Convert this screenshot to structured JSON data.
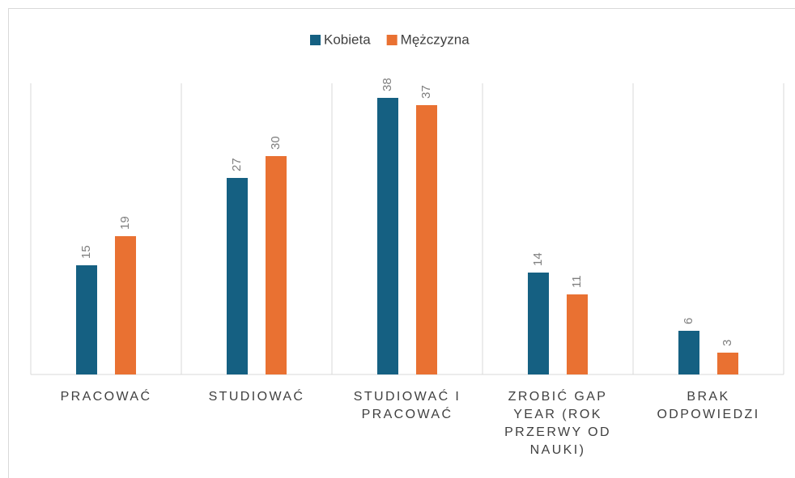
{
  "chart_data": {
    "type": "bar",
    "categories": [
      "PRACOWAĆ",
      "STUDIOWAĆ",
      "STUDIOWAĆ I PRACOWAĆ",
      "ZROBIĆ GAP YEAR (ROK PRZERWY OD NAUKI)",
      "BRAK ODPOWIEDZI"
    ],
    "series": [
      {
        "name": "Kobieta",
        "color": "#156082",
        "values": [
          15,
          27,
          38,
          14,
          6
        ]
      },
      {
        "name": "Mężczyzna",
        "color": "#e97132",
        "values": [
          19,
          30,
          37,
          11,
          3
        ]
      }
    ],
    "ylim": [
      0,
      40
    ],
    "legend": "top"
  }
}
